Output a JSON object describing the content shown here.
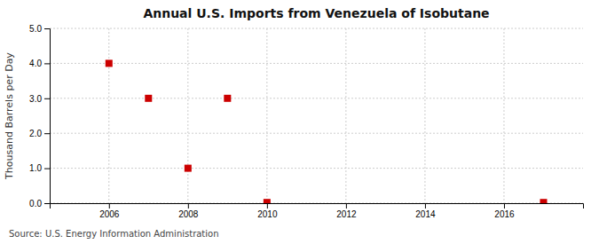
{
  "chart_data": {
    "type": "scatter",
    "title": "Annual U.S. Imports from Venezuela of Isobutane",
    "ylabel": "Thousand Barrels per Day",
    "annotations": [
      "Source: U.S. Energy Information Administration"
    ],
    "x": [
      2006,
      2007,
      2008,
      2009,
      2010,
      2017
    ],
    "values": [
      4.0,
      3.0,
      1.0,
      3.0,
      0.02,
      0.02
    ],
    "color": "#cc0000",
    "marker": "square",
    "xlim": [
      2004.5,
      2018
    ],
    "ylim": [
      0,
      5.0
    ],
    "xticks": [
      2006,
      2008,
      2010,
      2012,
      2014,
      2016
    ],
    "yticks": [
      {
        "value": 0.0,
        "label": "0.0"
      },
      {
        "value": 1.0,
        "label": "1.0"
      },
      {
        "value": 2.0,
        "label": "2.0"
      },
      {
        "value": 3.0,
        "label": "3.0"
      },
      {
        "value": 4.0,
        "label": "4.0"
      },
      {
        "value": 5.0,
        "label": "5.0"
      }
    ],
    "grid": true
  }
}
